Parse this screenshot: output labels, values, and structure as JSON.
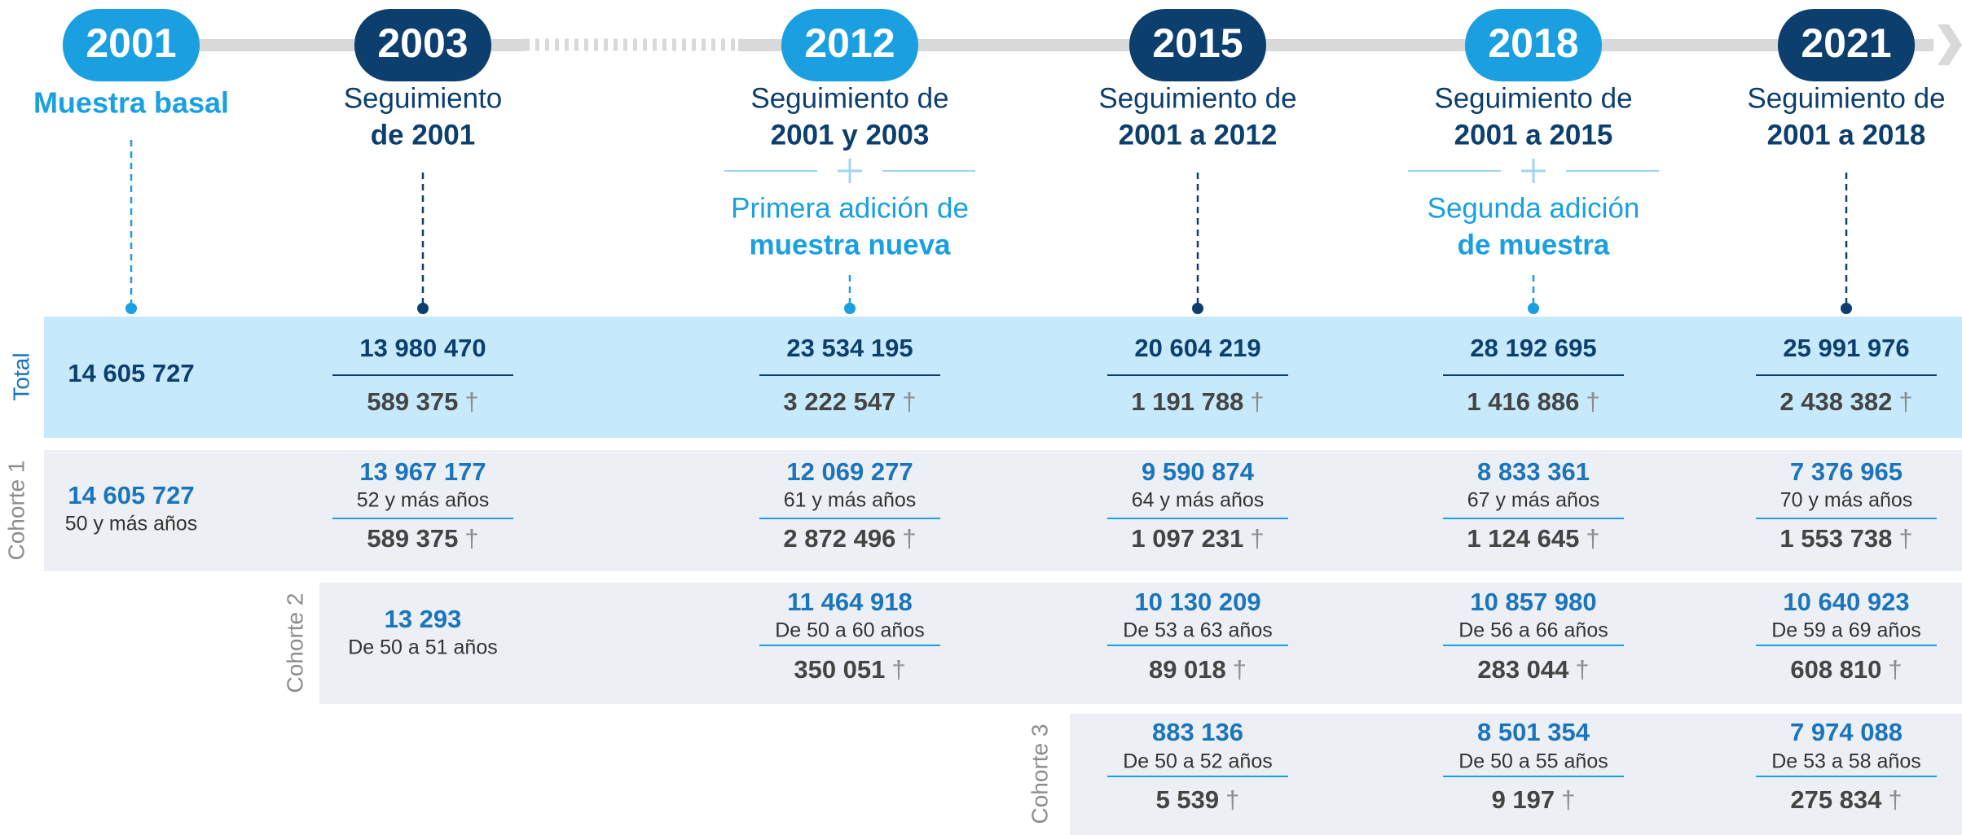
{
  "timeline": [
    {
      "year": "2001",
      "line1": "Muestra basal"
    },
    {
      "year": "2003",
      "line1": "Seguimiento",
      "line2": "de 2001"
    },
    {
      "year": "2012",
      "line1": "Seguimiento de",
      "line2": "2001 y 2003"
    },
    {
      "year": "2015",
      "line1": "Seguimiento de",
      "line2": "2001 a 2012"
    },
    {
      "year": "2018",
      "line1": "Seguimiento de",
      "line2": "2001 a 2015"
    },
    {
      "year": "2021",
      "line1": "Seguimiento de",
      "line2": "2001 a 2018"
    }
  ],
  "additions": [
    {
      "line1": "Primera adición de",
      "line2": "muestra nueva"
    },
    {
      "line1": "Segunda adición",
      "line2": "de muestra"
    }
  ],
  "death_symbol": "†",
  "rows": [
    {
      "label": "Total",
      "cells": [
        {
          "n": "14 605 727"
        },
        {
          "n": "13 980 470",
          "deaths": "589 375"
        },
        {
          "n": "23 534 195",
          "deaths": "3 222 547"
        },
        {
          "n": "20 604 219",
          "deaths": "1 191 788"
        },
        {
          "n": "28 192 695",
          "deaths": "1 416 886"
        },
        {
          "n": "25 991 976",
          "deaths": "2 438 382"
        }
      ]
    },
    {
      "label": "Cohorte 1",
      "cells": [
        {
          "n": "14 605 727",
          "age": "50 y más años"
        },
        {
          "n": "13 967 177",
          "age": "52 y más años",
          "deaths": "589 375"
        },
        {
          "n": "12 069 277",
          "age": "61 y más años",
          "deaths": "2 872 496"
        },
        {
          "n": "9 590 874",
          "age": "64 y más años",
          "deaths": "1 097 231"
        },
        {
          "n": "8 833 361",
          "age": "67 y más años",
          "deaths": "1 124 645"
        },
        {
          "n": "7 376 965",
          "age": "70 y más años",
          "deaths": "1 553 738"
        }
      ]
    },
    {
      "label": "Cohorte 2",
      "cells": [
        {
          "n": "13 293",
          "age": "De 50 a 51 años"
        },
        {
          "n": "11 464 918",
          "age": "De 50 a 60 años",
          "deaths": "350 051"
        },
        {
          "n": "10 130 209",
          "age": "De 53 a 63 años",
          "deaths": "89 018"
        },
        {
          "n": "10 857 980",
          "age": "De 56 a 66 años",
          "deaths": "283 044"
        },
        {
          "n": "10 640 923",
          "age": "De 59 a 69 años",
          "deaths": "608 810"
        }
      ]
    },
    {
      "label": "Cohorte 3",
      "cells": [
        {
          "n": "883 136",
          "age": "De 50 a 52 años",
          "deaths": "5 539"
        },
        {
          "n": "8 501 354",
          "age": "De 50 a 55 años",
          "deaths": "9 197"
        },
        {
          "n": "7 974 088",
          "age": "De 53 a 58 años",
          "deaths": "275 834"
        }
      ]
    }
  ]
}
